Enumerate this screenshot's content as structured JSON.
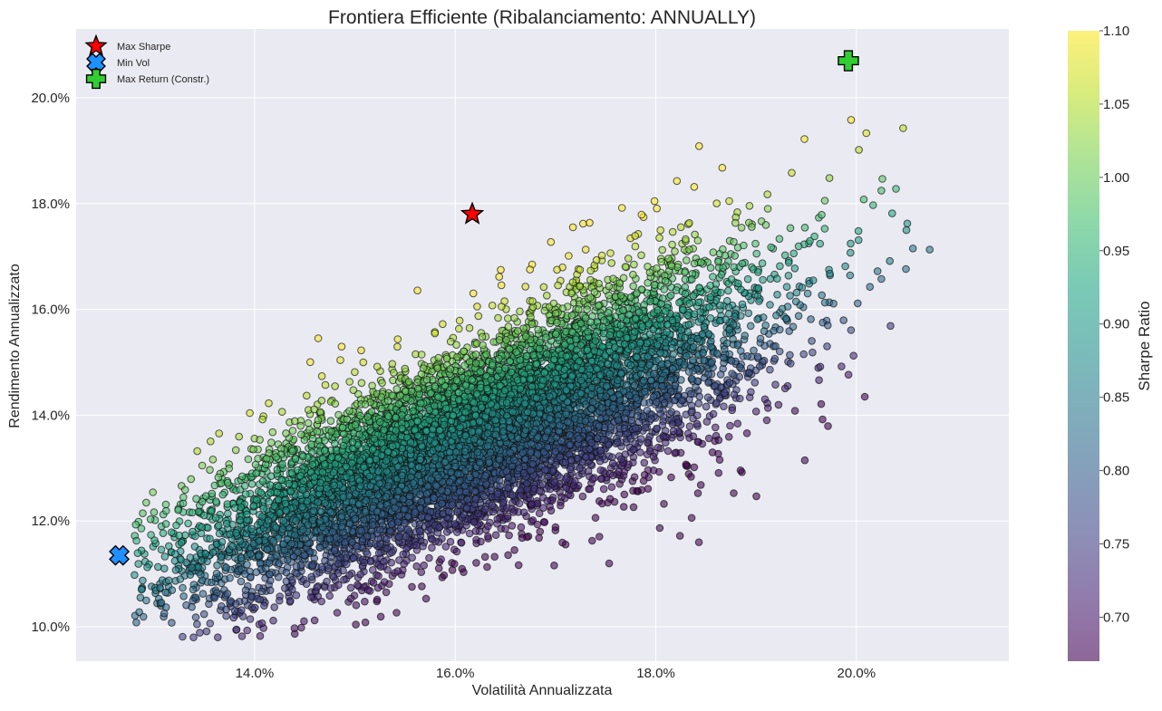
{
  "chart_data": {
    "type": "scatter",
    "title": "Frontiera Efficiente (Ribalanciamento: ANNUALLY)",
    "xlabel": "Volatilità Annualizzata",
    "ylabel": "Rendimento Annualizzato",
    "xlim": [
      0.1222,
      0.2152
    ],
    "ylim": [
      0.0935,
      0.213
    ],
    "x_ticks": [
      0.14,
      0.16,
      0.18,
      0.2
    ],
    "x_tick_labels": [
      "14.0%",
      "16.0%",
      "18.0%",
      "20.0%"
    ],
    "y_ticks": [
      0.1,
      0.12,
      0.14,
      0.16,
      0.18,
      0.2
    ],
    "y_tick_labels": [
      "10.0%",
      "12.0%",
      "14.0%",
      "16.0%",
      "18.0%",
      "20.0%"
    ],
    "grid": true,
    "background": "#eaeaf2",
    "legend_position": "top-left",
    "colorbar": {
      "label": "Sharpe Ratio",
      "range": [
        0.67,
        1.1
      ],
      "ticks": [
        0.7,
        0.75,
        0.8,
        0.85,
        0.9,
        0.95,
        1.0,
        1.05,
        1.1
      ],
      "tick_labels": [
        "0.70",
        "0.75",
        "0.80",
        "0.85",
        "0.90",
        "0.95",
        "1.00",
        "1.05",
        "1.10"
      ],
      "colormap": "viridis",
      "alpha": 0.6
    },
    "cloud": {
      "description_of_distribution": "Monte Carlo portfolios: return ≈ 0.111 + 0.78*(vol-0.13); Sharpe rises with distance above trend",
      "n_points": 9000,
      "vol_range": [
        0.128,
        0.212
      ],
      "ret_range": [
        0.098,
        0.205
      ]
    },
    "series": [
      {
        "name": "Max Sharpe",
        "marker": "star",
        "color": "#ff0000",
        "points": [
          {
            "x": 0.1617,
            "y": 0.178
          }
        ]
      },
      {
        "name": "Min Vol",
        "marker": "X",
        "color": "#1e90ff",
        "points": [
          {
            "x": 0.1265,
            "y": 0.1135
          }
        ]
      },
      {
        "name": "Max Return (Constr.)",
        "marker": "P",
        "color": "#32cd32",
        "points": [
          {
            "x": 0.1992,
            "y": 0.207
          }
        ]
      }
    ]
  }
}
